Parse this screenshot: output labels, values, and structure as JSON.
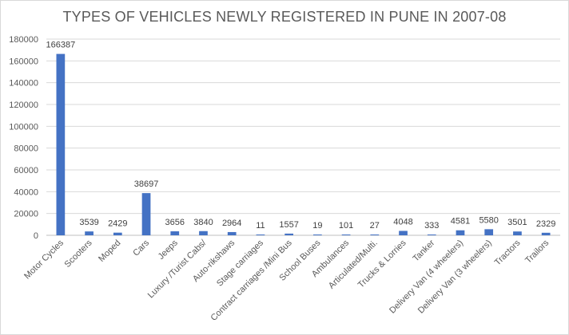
{
  "chart_data": {
    "type": "bar",
    "title": "TYPES OF VEHICLES NEWLY REGISTERED IN PUNE IN 2007-08",
    "xlabel": "",
    "ylabel": "",
    "ylim": [
      0,
      180000
    ],
    "yticks": [
      0,
      20000,
      40000,
      60000,
      80000,
      100000,
      120000,
      140000,
      160000,
      180000
    ],
    "grid": true,
    "legend": "none",
    "bar_color": "#4472c4",
    "categories": [
      "Motor Cycles",
      "Scooters",
      "Moped",
      "Cars",
      "Jeeps",
      "Luxury /Turist Cabs/",
      "Auto-rikshaws",
      "Stage carriages",
      "Contract carriages /Mini Bus",
      "School Buses",
      "Ambulances",
      "Articulated/Multi.",
      "Trucks & Lorries",
      "Tanker",
      "Delivery Van (4 wheelers)",
      "Delivery Van (3 wheelers)",
      "Tractors",
      "Trailors"
    ],
    "values": [
      166387,
      3539,
      2429,
      38697,
      3656,
      3840,
      2964,
      11,
      1557,
      19,
      101,
      27,
      4048,
      333,
      4581,
      5580,
      3501,
      2329
    ]
  }
}
